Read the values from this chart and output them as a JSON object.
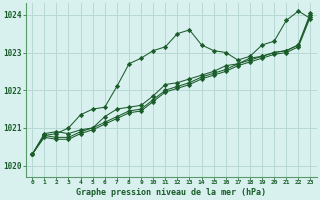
{
  "title": "Graphe pression niveau de la mer (hPa)",
  "background_color": "#d8f0ee",
  "grid_color": "#b8d8d4",
  "line_color": "#1a5c2a",
  "xlim": [
    -0.5,
    23.5
  ],
  "ylim": [
    1019.7,
    1024.3
  ],
  "yticks": [
    1020,
    1021,
    1022,
    1023,
    1024
  ],
  "xtick_labels": [
    "0",
    "1",
    "2",
    "3",
    "4",
    "5",
    "6",
    "7",
    "8",
    "9",
    "10",
    "11",
    "12",
    "13",
    "14",
    "15",
    "16",
    "17",
    "18",
    "19",
    "20",
    "21",
    "22",
    "23"
  ],
  "series": [
    {
      "x": [
        0,
        1,
        2,
        3,
        4,
        5,
        6,
        7,
        8,
        9,
        10,
        11,
        12,
        13,
        14,
        15,
        16,
        17,
        18,
        19,
        20,
        21,
        22,
        23
      ],
      "y": [
        1020.3,
        1020.8,
        1020.85,
        1021.0,
        1021.35,
        1021.5,
        1021.55,
        1022.1,
        1022.7,
        1022.85,
        1023.05,
        1023.15,
        1023.5,
        1023.6,
        1023.2,
        1023.05,
        1023.0,
        1022.8,
        1022.9,
        1023.2,
        1023.3,
        1023.85,
        1024.1,
        1023.9
      ]
    },
    {
      "x": [
        0,
        1,
        2,
        3,
        4,
        5,
        6,
        7,
        8,
        9,
        10,
        11,
        12,
        13,
        14,
        15,
        16,
        17,
        18,
        19,
        20,
        21,
        22,
        23
      ],
      "y": [
        1020.3,
        1020.85,
        1020.9,
        1020.85,
        1020.95,
        1021.0,
        1021.3,
        1021.5,
        1021.55,
        1021.6,
        1021.85,
        1022.15,
        1022.2,
        1022.3,
        1022.4,
        1022.5,
        1022.65,
        1022.7,
        1022.85,
        1022.9,
        1023.0,
        1023.05,
        1023.2,
        1024.05
      ]
    },
    {
      "x": [
        0,
        1,
        2,
        3,
        4,
        5,
        6,
        7,
        8,
        9,
        10,
        11,
        12,
        13,
        14,
        15,
        16,
        17,
        18,
        19,
        20,
        21,
        22,
        23
      ],
      "y": [
        1020.3,
        1020.8,
        1020.75,
        1020.75,
        1020.9,
        1021.0,
        1021.15,
        1021.3,
        1021.45,
        1021.5,
        1021.75,
        1022.0,
        1022.1,
        1022.2,
        1022.35,
        1022.45,
        1022.55,
        1022.7,
        1022.8,
        1022.9,
        1023.0,
        1023.05,
        1023.2,
        1024.0
      ]
    },
    {
      "x": [
        0,
        1,
        2,
        3,
        4,
        5,
        6,
        7,
        8,
        9,
        10,
        11,
        12,
        13,
        14,
        15,
        16,
        17,
        18,
        19,
        20,
        21,
        22,
        23
      ],
      "y": [
        1020.3,
        1020.75,
        1020.7,
        1020.7,
        1020.85,
        1020.95,
        1021.1,
        1021.25,
        1021.4,
        1021.45,
        1021.7,
        1021.95,
        1022.05,
        1022.15,
        1022.3,
        1022.4,
        1022.5,
        1022.65,
        1022.75,
        1022.85,
        1022.95,
        1023.0,
        1023.15,
        1023.95
      ]
    }
  ]
}
